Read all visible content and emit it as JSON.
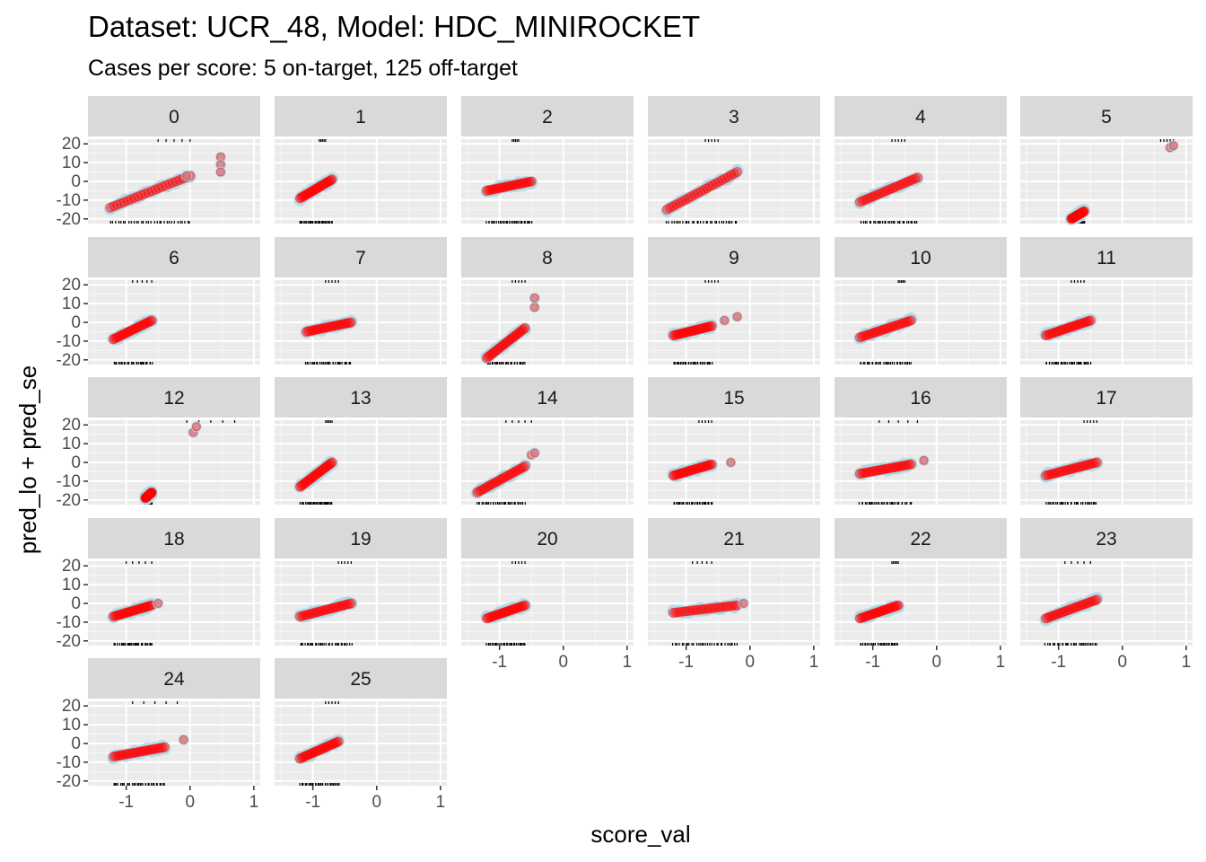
{
  "chart_data": {
    "type": "scatter",
    "title": "Dataset: UCR_48, Model: HDC_MINIROCKET",
    "subtitle": "Cases per score: 5 on-target, 125 off-target",
    "xlabel": "score_val",
    "ylabel": "pred_lo + pred_se",
    "xlim": [
      -1.6,
      1.1
    ],
    "ylim": [
      -22.5,
      22.5
    ],
    "x_ticks": [
      -1,
      0,
      1
    ],
    "x_tick_labels": [
      "-1",
      "0",
      "1"
    ],
    "y_ticks": [
      20,
      10,
      0,
      -10,
      -20
    ],
    "y_tick_labels": [
      "20",
      "10",
      "0",
      "-10",
      "-20"
    ],
    "grid": true,
    "series_colors": {
      "band": "#add8e6",
      "points": "#ff0000",
      "rug": "#000000",
      "panel": "#ebebeb",
      "strip": "#d9d9d9"
    },
    "panels": [
      {
        "label": "0",
        "x": [
          -1.25,
          0.0
        ],
        "y": [
          -14,
          3
        ],
        "extra": [
          [
            0.48,
            13
          ],
          [
            0.48,
            9
          ],
          [
            0.48,
            5
          ],
          [
            -0.05,
            3
          ]
        ],
        "top_rug": [
          -0.5,
          0.0
        ]
      },
      {
        "label": "1",
        "x": [
          -1.2,
          -0.7
        ],
        "y": [
          -9,
          1
        ],
        "extra": [],
        "top_rug": [
          -0.9,
          -0.8
        ]
      },
      {
        "label": "2",
        "x": [
          -1.2,
          -0.5
        ],
        "y": [
          -5,
          0
        ],
        "extra": [],
        "top_rug": [
          -0.8,
          -0.7
        ]
      },
      {
        "label": "3",
        "x": [
          -1.3,
          -0.2
        ],
        "y": [
          -15,
          5
        ],
        "extra": [],
        "top_rug": [
          -0.7,
          -0.5
        ]
      },
      {
        "label": "4",
        "x": [
          -1.2,
          -0.3
        ],
        "y": [
          -11,
          2
        ],
        "extra": [],
        "top_rug": [
          -0.7,
          -0.5
        ]
      },
      {
        "label": "5",
        "x": [
          -0.8,
          -0.6
        ],
        "y": [
          -20,
          -16
        ],
        "extra": [
          [
            0.75,
            18
          ],
          [
            0.8,
            19
          ]
        ],
        "top_rug": [
          0.6,
          0.8
        ]
      },
      {
        "label": "6",
        "x": [
          -1.2,
          -0.6
        ],
        "y": [
          -9,
          1
        ],
        "extra": [],
        "top_rug": [
          -0.9,
          -0.6
        ]
      },
      {
        "label": "7",
        "x": [
          -1.1,
          -0.4
        ],
        "y": [
          -5,
          0
        ],
        "extra": [],
        "top_rug": [
          -0.8,
          -0.6
        ]
      },
      {
        "label": "8",
        "x": [
          -1.2,
          -0.6
        ],
        "y": [
          -19,
          -3
        ],
        "extra": [
          [
            -0.45,
            8
          ],
          [
            -0.45,
            13
          ]
        ],
        "top_rug": [
          -0.8,
          -0.6
        ]
      },
      {
        "label": "9",
        "x": [
          -1.2,
          -0.6
        ],
        "y": [
          -7,
          -2
        ],
        "extra": [
          [
            -0.4,
            1
          ],
          [
            -0.2,
            3
          ]
        ],
        "top_rug": [
          -0.7,
          -0.5
        ]
      },
      {
        "label": "10",
        "x": [
          -1.2,
          -0.4
        ],
        "y": [
          -8,
          1
        ],
        "extra": [],
        "top_rug": [
          -0.6,
          -0.5
        ]
      },
      {
        "label": "11",
        "x": [
          -1.2,
          -0.5
        ],
        "y": [
          -7,
          1
        ],
        "extra": [],
        "top_rug": [
          -0.8,
          -0.6
        ]
      },
      {
        "label": "12",
        "x": [
          -0.7,
          -0.6
        ],
        "y": [
          -19,
          -16
        ],
        "extra": [
          [
            0.05,
            16
          ],
          [
            0.1,
            19
          ]
        ],
        "top_rug": [
          -0.05,
          0.7
        ]
      },
      {
        "label": "13",
        "x": [
          -1.2,
          -0.7
        ],
        "y": [
          -13,
          0
        ],
        "extra": [],
        "top_rug": [
          -0.8,
          -0.7
        ]
      },
      {
        "label": "14",
        "x": [
          -1.35,
          -0.6
        ],
        "y": [
          -16,
          -2
        ],
        "extra": [
          [
            -0.5,
            4
          ],
          [
            -0.45,
            5
          ]
        ],
        "top_rug": [
          -0.9,
          -0.5
        ]
      },
      {
        "label": "15",
        "x": [
          -1.2,
          -0.6
        ],
        "y": [
          -7,
          -1
        ],
        "extra": [
          [
            -0.3,
            0
          ]
        ],
        "top_rug": [
          -0.8,
          -0.6
        ]
      },
      {
        "label": "16",
        "x": [
          -1.2,
          -0.4
        ],
        "y": [
          -6,
          -1
        ],
        "extra": [
          [
            -0.2,
            1
          ]
        ],
        "top_rug": [
          -0.9,
          -0.3
        ]
      },
      {
        "label": "17",
        "x": [
          -1.2,
          -0.4
        ],
        "y": [
          -7,
          0
        ],
        "extra": [],
        "top_rug": [
          -0.6,
          -0.4
        ]
      },
      {
        "label": "18",
        "x": [
          -1.2,
          -0.6
        ],
        "y": [
          -7,
          -1
        ],
        "extra": [
          [
            -0.5,
            0
          ]
        ],
        "top_rug": [
          -1.0,
          -0.6
        ]
      },
      {
        "label": "19",
        "x": [
          -1.2,
          -0.4
        ],
        "y": [
          -7,
          0
        ],
        "extra": [],
        "top_rug": [
          -0.6,
          -0.4
        ]
      },
      {
        "label": "20",
        "x": [
          -1.2,
          -0.6
        ],
        "y": [
          -8,
          -1
        ],
        "extra": [],
        "top_rug": [
          -0.8,
          -0.6
        ]
      },
      {
        "label": "21",
        "x": [
          -1.2,
          -0.2
        ],
        "y": [
          -5,
          -1
        ],
        "extra": [
          [
            -0.1,
            0
          ]
        ],
        "top_rug": [
          -0.9,
          -0.6
        ]
      },
      {
        "label": "22",
        "x": [
          -1.2,
          -0.6
        ],
        "y": [
          -8,
          -1
        ],
        "extra": [],
        "top_rug": [
          -0.7,
          -0.6
        ]
      },
      {
        "label": "23",
        "x": [
          -1.2,
          -0.4
        ],
        "y": [
          -8,
          2
        ],
        "extra": [],
        "top_rug": [
          -0.9,
          -0.5
        ]
      },
      {
        "label": "24",
        "x": [
          -1.2,
          -0.4
        ],
        "y": [
          -7,
          -2
        ],
        "extra": [
          [
            -0.1,
            2
          ]
        ],
        "top_rug": [
          -0.9,
          -0.2
        ]
      },
      {
        "label": "25",
        "x": [
          -1.2,
          -0.6
        ],
        "y": [
          -8,
          1
        ],
        "extra": [],
        "top_rug": [
          -0.8,
          -0.6
        ]
      }
    ]
  }
}
